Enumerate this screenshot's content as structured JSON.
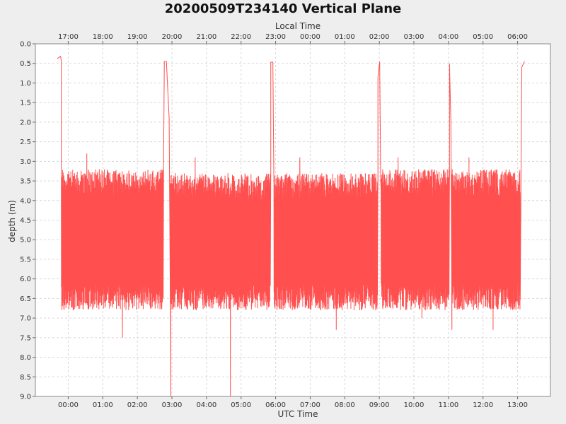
{
  "chart_data": {
    "type": "line",
    "title": "20200509T234140 Vertical Plane",
    "xlabel": "UTC Time",
    "x2label": "Local Time",
    "ylabel": "depth (m)",
    "ylim": [
      0.0,
      9.0
    ],
    "y_inverted": true,
    "y_ticks": [
      "0.0",
      "0.5",
      "1.0",
      "1.5",
      "2.0",
      "2.5",
      "3.0",
      "3.5",
      "4.0",
      "4.5",
      "5.0",
      "5.5",
      "6.0",
      "6.5",
      "7.0",
      "7.5",
      "8.0",
      "8.5",
      "9.0"
    ],
    "x_range_hours": [
      -0.95,
      13.95
    ],
    "x_ticks_utc": [
      "00:00",
      "01:00",
      "02:00",
      "03:00",
      "04:00",
      "05:00",
      "06:00",
      "07:00",
      "08:00",
      "09:00",
      "10:00",
      "11:00",
      "12:00",
      "13:00"
    ],
    "x_ticks_local": [
      "17:00",
      "18:00",
      "19:00",
      "20:00",
      "21:00",
      "22:00",
      "23:00",
      "00:00",
      "01:00",
      "02:00",
      "03:00",
      "04:00",
      "05:00",
      "06:00"
    ],
    "grid": true,
    "line_color": "#ff4f4f",
    "surface_points": [
      {
        "x": -0.32,
        "y": 0.38
      },
      {
        "x": -0.22,
        "y": 0.32
      },
      {
        "x": -0.2,
        "y": 0.45
      },
      {
        "x": 2.78,
        "y": 0.45
      },
      {
        "x": 2.84,
        "y": 0.45
      },
      {
        "x": 5.86,
        "y": 0.47
      },
      {
        "x": 5.92,
        "y": 0.47
      },
      {
        "x": 8.96,
        "y": 0.85
      },
      {
        "x": 9.01,
        "y": 0.45
      },
      {
        "x": 11.03,
        "y": 0.5
      },
      {
        "x": 13.12,
        "y": 0.6
      },
      {
        "x": 13.2,
        "y": 0.45
      }
    ],
    "dive_segments": [
      {
        "start": -0.2,
        "end": 2.75,
        "min": 3.3,
        "max": 6.7,
        "peak_shallow": 2.8,
        "peak_deep": 7.5
      },
      {
        "start": 2.95,
        "end": 5.85,
        "min": 3.4,
        "max": 6.7,
        "peak_shallow": 2.9,
        "peak_deep": 9.0
      },
      {
        "start": 5.95,
        "end": 8.95,
        "min": 3.4,
        "max": 6.7,
        "peak_shallow": 2.9,
        "peak_deep": 7.3
      },
      {
        "start": 9.05,
        "end": 11.02,
        "min": 3.3,
        "max": 6.7,
        "peak_shallow": 2.9,
        "peak_deep": 7.0
      },
      {
        "start": 11.1,
        "end": 13.08,
        "min": 3.3,
        "max": 6.7,
        "peak_shallow": 2.9,
        "peak_deep": 7.3
      }
    ]
  }
}
